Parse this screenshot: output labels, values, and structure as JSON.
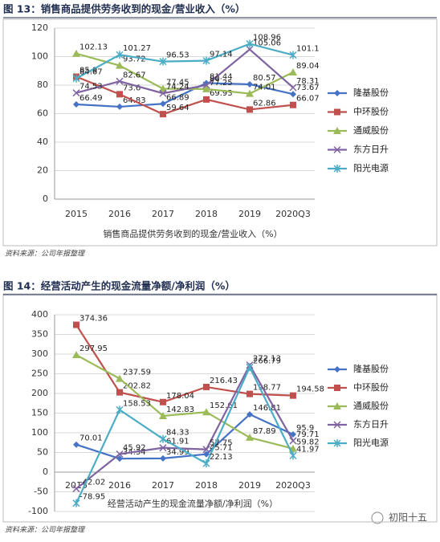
{
  "chart_data": [
    {
      "type": "line",
      "title": "图 13：销售商品提供劳务收到的现金/营业收入（%）",
      "x_label": "销售商品提供劳务收到的现金/营业收入（%）",
      "source": "资料来源：公司年报整理",
      "categories": [
        "2015",
        "2016",
        "2017",
        "2018",
        "2019",
        "2020Q3"
      ],
      "ylim": [
        0,
        120
      ],
      "yticks": [
        0,
        20,
        40,
        60,
        80,
        100,
        120
      ],
      "grid": true,
      "legend": "right",
      "series": [
        {
          "name": "隆基股份",
          "color": "#4472c4",
          "marker": "diamond",
          "values": [
            66.49,
            64.83,
            66.89,
            81.44,
            80.57,
            73.67
          ]
        },
        {
          "name": "中环股份",
          "color": "#c0504d",
          "marker": "square",
          "values": [
            85.9,
            73.6,
            59.64,
            69.93,
            62.86,
            66.07
          ]
        },
        {
          "name": "通威股份",
          "color": "#9bbb59",
          "marker": "triangle",
          "values": [
            102.13,
            93.72,
            77.45,
            77.25,
            74.01,
            89.04
          ]
        },
        {
          "name": "东方日升",
          "color": "#8064a2",
          "marker": "x",
          "values": [
            74.53,
            82.67,
            74.24,
            80,
            105.06,
            78.31
          ]
        },
        {
          "name": "阳光电源",
          "color": "#4bacc6",
          "marker": "star",
          "values": [
            84.67,
            101.27,
            96.53,
            97.14,
            108.96,
            101.1
          ]
        }
      ]
    },
    {
      "type": "line",
      "title": "图 14：经营活动产生的现金流量净额/净利润（%）",
      "x_label": "经营活动产生的现金流量净额/净利润（%）",
      "source": "资料来源：公司年报整理",
      "categories": [
        "2015",
        "2016",
        "2017",
        "2018",
        "2019",
        "2020Q3"
      ],
      "ylim": [
        -100,
        400
      ],
      "yticks": [
        -100,
        -50,
        0,
        50,
        100,
        150,
        200,
        250,
        300,
        350,
        400
      ],
      "grid": true,
      "legend": "right",
      "series": [
        {
          "name": "隆基股份",
          "color": "#4472c4",
          "marker": "diamond",
          "values": [
            70.01,
            34.34,
            34.99,
            45.71,
            146.81,
            95.9
          ]
        },
        {
          "name": "中环股份",
          "color": "#c0504d",
          "marker": "square",
          "values": [
            374.36,
            202.82,
            178.04,
            216.43,
            198.77,
            194.58
          ]
        },
        {
          "name": "通威股份",
          "color": "#9bbb59",
          "marker": "triangle",
          "values": [
            297.95,
            237.59,
            142.83,
            152.61,
            87.89,
            59.82
          ]
        },
        {
          "name": "东方日升",
          "color": "#8064a2",
          "marker": "x",
          "values": [
            -42.02,
            45.92,
            61.91,
            57.75,
            272.13,
            79.71
          ]
        },
        {
          "name": "阳光电源",
          "color": "#4bacc6",
          "marker": "star",
          "values": [
            -78.95,
            158.53,
            84.33,
            22.13,
            266.79,
            41.97
          ]
        }
      ]
    }
  ],
  "watermark": "初阳十五"
}
